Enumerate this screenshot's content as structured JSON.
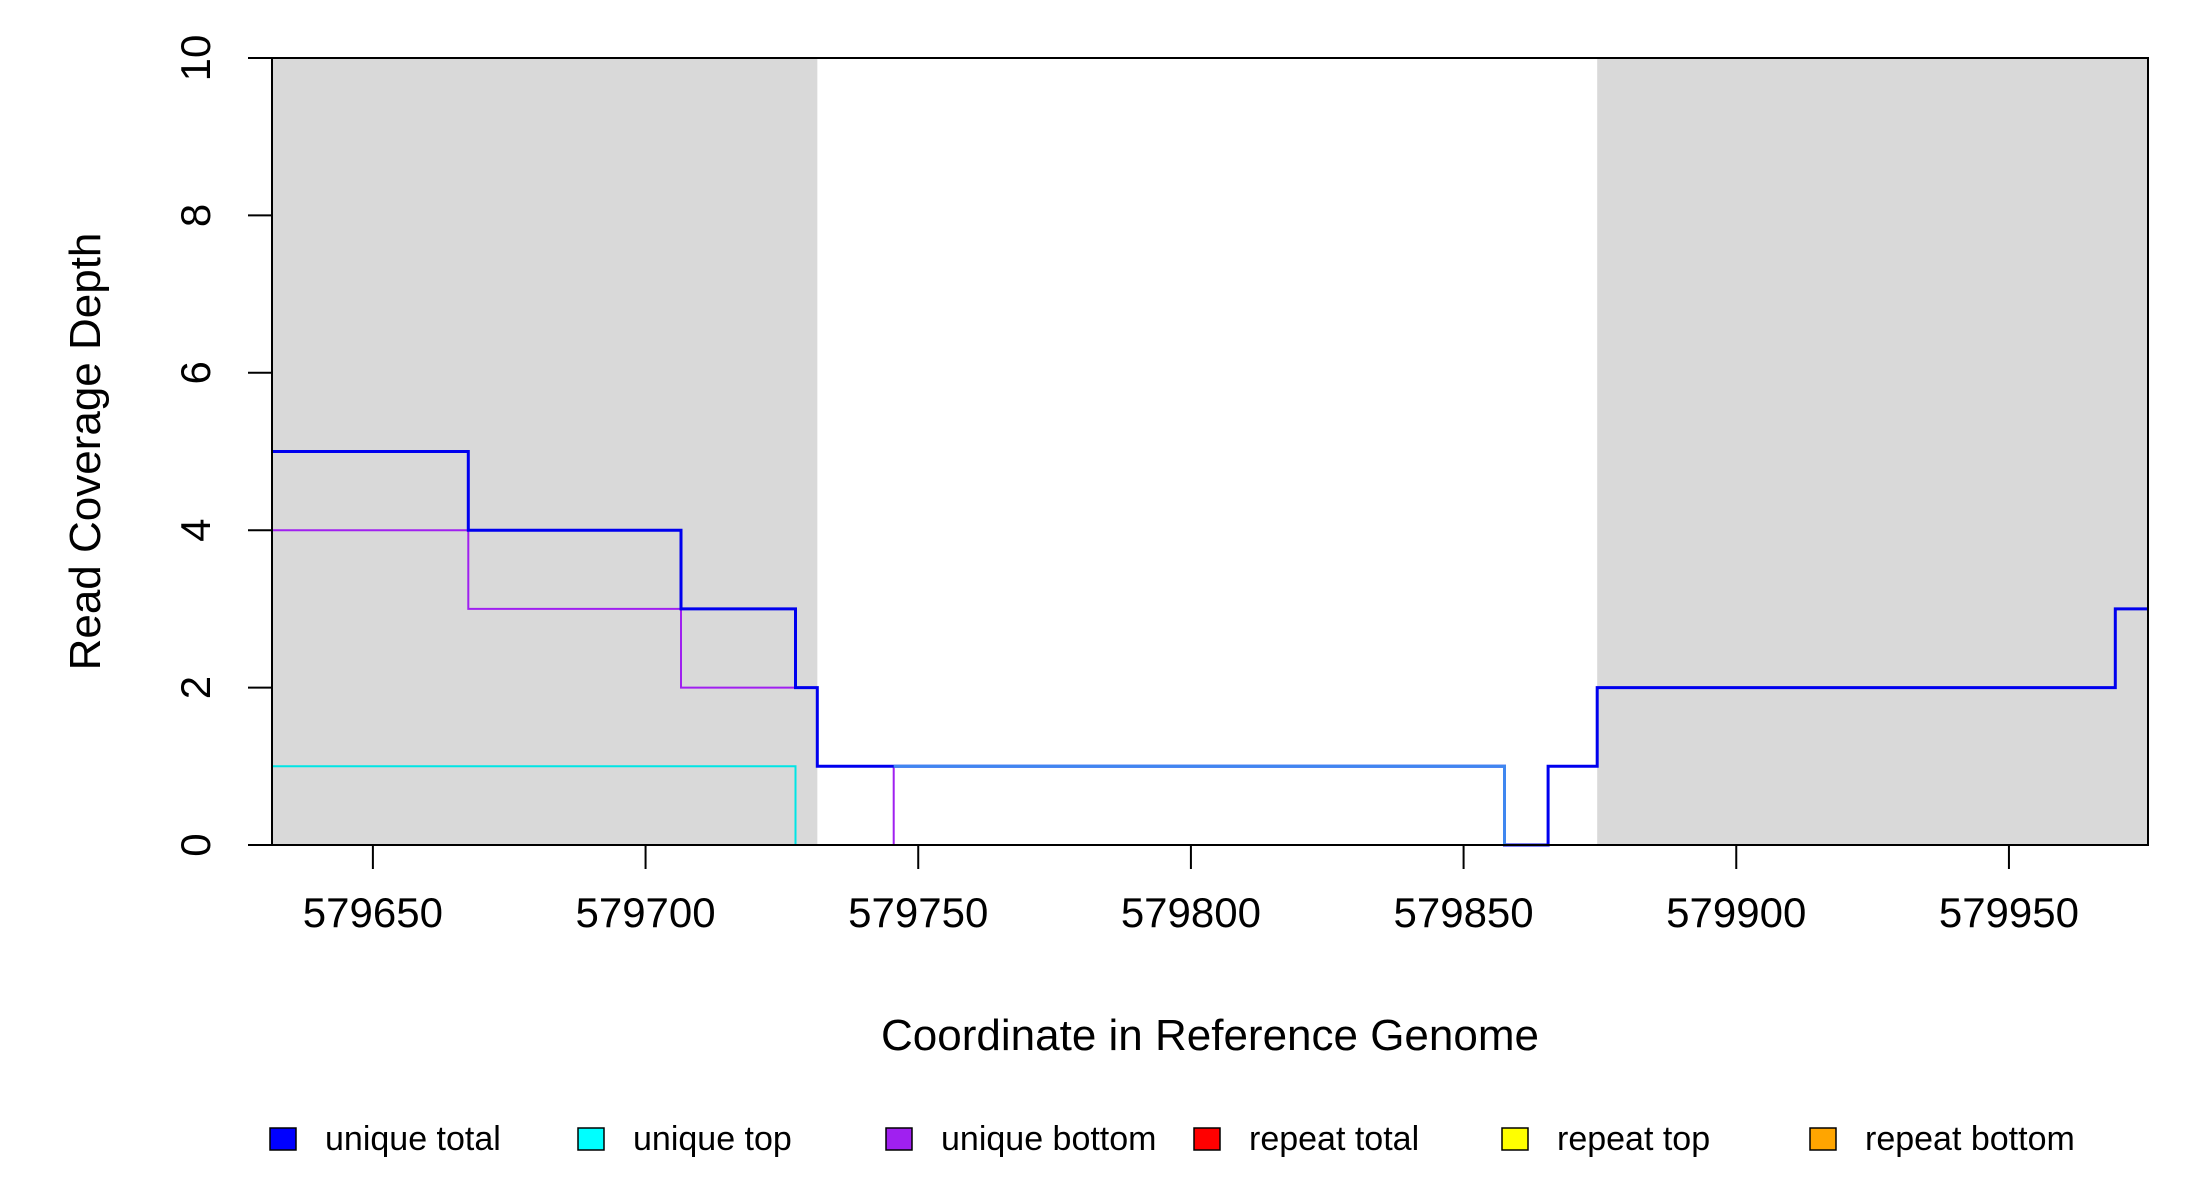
{
  "chart_data": {
    "type": "line",
    "xlabel": "Coordinate in Reference Genome",
    "ylabel": "Read Coverage Depth",
    "xlim": [
      579631.5,
      579975.5
    ],
    "ylim": [
      0,
      10
    ],
    "x_ticks": [
      579650,
      579700,
      579750,
      579800,
      579850,
      579900,
      579950
    ],
    "x_tick_labels": [
      "579650",
      "579700",
      "579750",
      "579800",
      "579850",
      "579900",
      "579950"
    ],
    "y_ticks": [
      0,
      2,
      4,
      6,
      8,
      10
    ],
    "y_tick_labels": [
      "0",
      "2",
      "4",
      "6",
      "8",
      "10"
    ],
    "shaded_regions": [
      {
        "x_start": 579631.5,
        "x_end": 579731.5,
        "color": "#d9d9d9"
      },
      {
        "x_start": 579874.5,
        "x_end": 579975.5,
        "color": "#d9d9d9"
      }
    ],
    "legend_position": "bottom",
    "series": [
      {
        "name": "repeat total",
        "color": "#ff0000",
        "width": 2,
        "points": [
          [
            579631.5,
            0
          ],
          [
            579975.5,
            0
          ]
        ]
      },
      {
        "name": "repeat top",
        "color": "#ffff00",
        "width": 2,
        "points": [
          [
            579631.5,
            0
          ],
          [
            579975.5,
            0
          ]
        ]
      },
      {
        "name": "repeat bottom",
        "color": "#ffa500",
        "width": 2,
        "points": [
          [
            579631.5,
            0
          ],
          [
            579975.5,
            0
          ]
        ]
      },
      {
        "name": "unique top",
        "color": "#00e5e5",
        "width": 2,
        "points": [
          [
            579631.5,
            1
          ],
          [
            579727.5,
            1
          ],
          [
            579727.5,
            0
          ],
          [
            579975.5,
            0
          ]
        ]
      },
      {
        "name": "unique bottom",
        "color": "#a020f0",
        "width": 2,
        "points": [
          [
            579631.5,
            4
          ],
          [
            579667.5,
            4
          ],
          [
            579667.5,
            3
          ],
          [
            579706.5,
            3
          ],
          [
            579706.5,
            2
          ],
          [
            579731.5,
            2
          ],
          [
            579731.5,
            1
          ],
          [
            579745.5,
            1
          ],
          [
            579745.5,
            0
          ],
          [
            579865.5,
            0
          ],
          [
            579865.5,
            1
          ],
          [
            579874.5,
            1
          ],
          [
            579874.5,
            2
          ],
          [
            579969.5,
            2
          ],
          [
            579969.5,
            3
          ],
          [
            579975.5,
            3
          ]
        ]
      },
      {
        "name": "unique total",
        "color": "#0000ee",
        "width": 3,
        "points": [
          [
            579631.5,
            5
          ],
          [
            579667.5,
            5
          ],
          [
            579667.5,
            4
          ],
          [
            579706.5,
            4
          ],
          [
            579706.5,
            3
          ],
          [
            579727.5,
            3
          ],
          [
            579727.5,
            2
          ],
          [
            579731.5,
            2
          ],
          [
            579731.5,
            1
          ],
          [
            579857.5,
            1
          ],
          [
            579857.5,
            0
          ],
          [
            579865.5,
            0
          ],
          [
            579865.5,
            1
          ],
          [
            579874.5,
            1
          ],
          [
            579874.5,
            2
          ],
          [
            579969.5,
            2
          ],
          [
            579969.5,
            3
          ],
          [
            579975.5,
            3
          ]
        ]
      },
      {
        "name": "",
        "color": "#3f87f0",
        "width": 3,
        "points": [
          [
            579745.5,
            1
          ],
          [
            579857.5,
            1
          ],
          [
            579857.5,
            0
          ]
        ]
      }
    ],
    "legend": [
      {
        "label": "unique total",
        "color": "#0000ff"
      },
      {
        "label": "unique top",
        "color": "#00ffff"
      },
      {
        "label": "unique bottom",
        "color": "#a020f0"
      },
      {
        "label": "repeat total",
        "color": "#ff0000"
      },
      {
        "label": "repeat top",
        "color": "#ffff00"
      },
      {
        "label": "repeat bottom",
        "color": "#ffa500"
      }
    ]
  }
}
